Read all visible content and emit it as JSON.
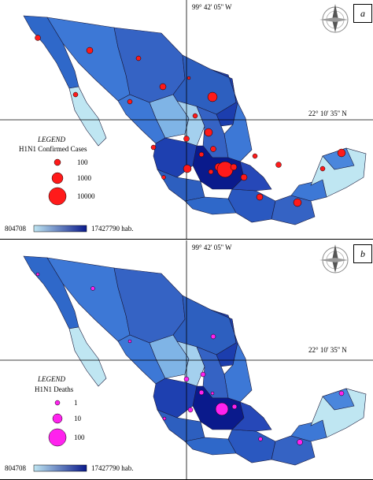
{
  "panels": [
    {
      "letter": "a",
      "longitude_label": "99° 42' 05'' W",
      "latitude_label": "22° 10' 35'' N",
      "legend_title": "LEGEND",
      "legend_subtitle": "H1N1 Confirmed  Cases",
      "legend_sizes": [
        "100",
        "1000",
        "10000"
      ],
      "scale_min": "804708",
      "scale_max": "17427790 hab.",
      "marker_color": "#ff1a1a"
    },
    {
      "letter": "b",
      "longitude_label": "99° 42' 05'' W",
      "latitude_label": "22° 10' 35'' N",
      "legend_title": "LEGEND",
      "legend_subtitle": "H1N1 Deaths",
      "legend_sizes": [
        "1",
        "10",
        "100"
      ],
      "scale_min": "804708",
      "scale_max": "17427790 hab.",
      "marker_color": "#ff22ee"
    }
  ],
  "colors": {
    "pop_low": "#bfe6f2",
    "pop_mid": "#3d78d6",
    "pop_high": "#0a1a8c",
    "border": "#1a1a3a"
  }
}
